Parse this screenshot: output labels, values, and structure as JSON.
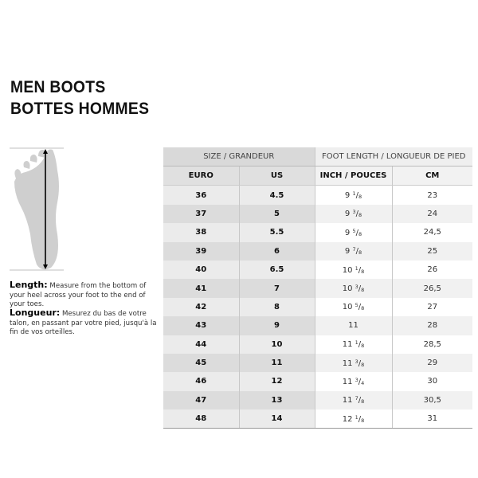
{
  "title": {
    "line1": "MEN BOOTS",
    "line2": "BOTTES HOMMES"
  },
  "instructions": {
    "en_label": "Length:",
    "en_text": "Measure from the bottom of your heel across your foot to the end of your toes.",
    "fr_label": "Longueur:",
    "fr_text": "Mesurez du bas de votre talon, en passant par votre pied, jusqu'à la fin de vos orteilles."
  },
  "table": {
    "group_headers": [
      "SIZE / GRANDEUR",
      "FOOT LENGTH / LONGUEUR DE PIED"
    ],
    "columns": [
      "EURO",
      "US",
      "INCH / POUCES",
      "CM"
    ],
    "rows": [
      {
        "euro": "36",
        "us": "4.5",
        "inch": "9",
        "num": "1",
        "den": "8",
        "cm": "23"
      },
      {
        "euro": "37",
        "us": "5",
        "inch": "9",
        "num": "3",
        "den": "8",
        "cm": "24"
      },
      {
        "euro": "38",
        "us": "5.5",
        "inch": "9",
        "num": "5",
        "den": "8",
        "cm": "24,5"
      },
      {
        "euro": "39",
        "us": "6",
        "inch": "9",
        "num": "7",
        "den": "8",
        "cm": "25"
      },
      {
        "euro": "40",
        "us": "6.5",
        "inch": "10",
        "num": "1",
        "den": "8",
        "cm": "26"
      },
      {
        "euro": "41",
        "us": "7",
        "inch": "10",
        "num": "3",
        "den": "8",
        "cm": "26,5"
      },
      {
        "euro": "42",
        "us": "8",
        "inch": "10",
        "num": "5",
        "den": "8",
        "cm": "27"
      },
      {
        "euro": "43",
        "us": "9",
        "inch": "11",
        "num": "",
        "den": "",
        "cm": "28"
      },
      {
        "euro": "44",
        "us": "10",
        "inch": "11",
        "num": "1",
        "den": "8",
        "cm": "28,5"
      },
      {
        "euro": "45",
        "us": "11",
        "inch": "11",
        "num": "3",
        "den": "8",
        "cm": "29"
      },
      {
        "euro": "46",
        "us": "12",
        "inch": "11",
        "num": "3",
        "den": "4",
        "cm": "30"
      },
      {
        "euro": "47",
        "us": "13",
        "inch": "11",
        "num": "7",
        "den": "8",
        "cm": "30,5"
      },
      {
        "euro": "48",
        "us": "14",
        "inch": "12",
        "num": "1",
        "den": "8",
        "cm": "31"
      }
    ]
  }
}
